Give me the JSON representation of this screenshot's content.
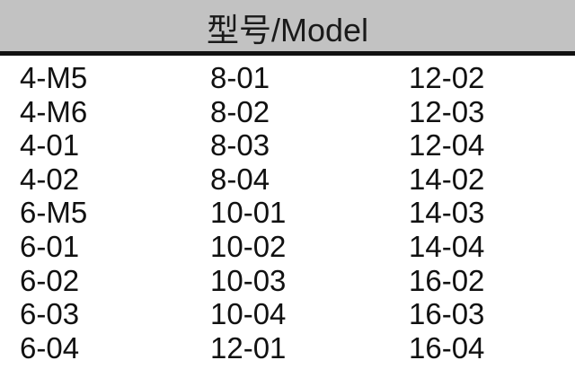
{
  "header": {
    "title": "型号/Model"
  },
  "columns": [
    [
      "4-M5",
      "4-M6",
      "4-01",
      "4-02",
      "6-M5",
      "6-01",
      "6-02",
      "6-03",
      "6-04"
    ],
    [
      "8-01",
      "8-02",
      "8-03",
      "8-04",
      "10-01",
      "10-02",
      "10-03",
      "10-04",
      "12-01"
    ],
    [
      "12-02",
      "12-03",
      "12-04",
      "14-02",
      "14-03",
      "14-04",
      "16-02",
      "16-03",
      "16-04"
    ]
  ],
  "colors": {
    "header_bg": "#c2c2c2",
    "rule": "#111111",
    "text": "#111111"
  }
}
